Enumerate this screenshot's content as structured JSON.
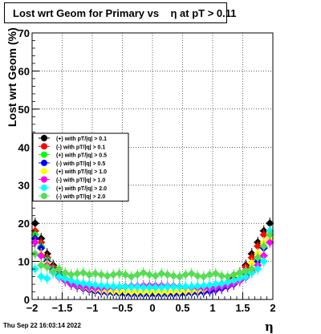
{
  "title": "Lost wrt Geom for Primary vs    η at pT > 0.11",
  "datestamp": "Thu Sep 22 16:03:14 2022",
  "chart_data": {
    "type": "scatter",
    "title": "Lost wrt Geom for Primary vs    η at pT > 0.11",
    "xlabel": "η",
    "ylabel": "Lost wrt Geom (%)",
    "xlim": [
      -2,
      2
    ],
    "ylim": [
      0,
      70
    ],
    "x_ticks": [
      -2,
      -1.5,
      -1,
      -0.5,
      0,
      0.5,
      1,
      1.5,
      2
    ],
    "x_tick_labels": [
      "−2",
      "−1.5",
      "−1",
      "−0.5",
      "0",
      "0.5",
      "1",
      "1.5",
      "2"
    ],
    "y_ticks": [
      0,
      10,
      20,
      30,
      40,
      50,
      60,
      70
    ],
    "y_tick_labels": [
      "0",
      "10",
      "20",
      "30",
      "40",
      "50",
      "60",
      "70"
    ],
    "grid": true,
    "legend_position": "upper-left",
    "x": [
      -1.95,
      -1.85,
      -1.75,
      -1.65,
      -1.55,
      -1.45,
      -1.35,
      -1.25,
      -1.15,
      -1.05,
      -0.95,
      -0.85,
      -0.75,
      -0.65,
      -0.55,
      -0.45,
      -0.35,
      -0.25,
      -0.15,
      -0.05,
      0.05,
      0.15,
      0.25,
      0.35,
      0.45,
      0.55,
      0.65,
      0.75,
      0.85,
      0.95,
      1.05,
      1.15,
      1.25,
      1.35,
      1.45,
      1.55,
      1.65,
      1.75,
      1.85,
      1.95
    ],
    "series": [
      {
        "name": "(+) with pT/|q| > 0.1",
        "color": "#000000",
        "values": [
          20,
          16,
          12,
          9,
          7,
          5.5,
          4.5,
          3.8,
          3.2,
          2.8,
          2.4,
          2.1,
          1.9,
          1.8,
          1.7,
          1.6,
          1.6,
          1.5,
          1.5,
          1.5,
          1.5,
          1.5,
          1.6,
          1.6,
          1.7,
          1.8,
          1.9,
          2.1,
          2.4,
          2.8,
          3.2,
          3.8,
          4.5,
          5.5,
          7,
          9,
          12,
          15,
          18,
          20
        ]
      },
      {
        "name": "(-) with pT/|q| > 0.1",
        "color": "#ff0000",
        "values": [
          18,
          15,
          11,
          8.5,
          6.8,
          5.3,
          4.3,
          3.6,
          3.1,
          2.7,
          2.3,
          2.0,
          1.9,
          1.8,
          1.7,
          1.6,
          1.5,
          1.5,
          1.5,
          1.5,
          1.5,
          1.5,
          1.5,
          1.6,
          1.7,
          1.8,
          1.9,
          2.0,
          2.3,
          2.7,
          3.1,
          3.6,
          4.3,
          5.3,
          6.8,
          8.5,
          11,
          14,
          17,
          18
        ]
      },
      {
        "name": "(+) with pT/|q| > 0.5",
        "color": "#00ff00",
        "values": [
          17,
          14,
          10.5,
          8,
          6.5,
          5.2,
          4.2,
          3.5,
          3.0,
          2.6,
          2.2,
          2.0,
          1.8,
          1.7,
          1.6,
          1.5,
          1.5,
          1.4,
          1.4,
          1.4,
          1.4,
          1.4,
          1.4,
          1.5,
          1.5,
          1.6,
          1.7,
          1.8,
          2.0,
          2.2,
          2.6,
          3.0,
          3.5,
          4.2,
          5.2,
          6.5,
          8,
          10.5,
          14,
          17
        ]
      },
      {
        "name": "(-) with pT/|q| > 0.5",
        "color": "#0000ff",
        "values": [
          16,
          13.5,
          10,
          7.8,
          6.2,
          5.0,
          4.0,
          3.4,
          2.9,
          2.5,
          2.2,
          1.9,
          1.8,
          1.7,
          1.6,
          1.5,
          1.4,
          1.4,
          1.4,
          1.4,
          1.4,
          1.4,
          1.4,
          1.4,
          1.5,
          1.6,
          1.7,
          1.8,
          1.9,
          2.2,
          2.5,
          2.9,
          3.4,
          4.0,
          5.0,
          6.2,
          7.8,
          10,
          13.5,
          16
        ]
      },
      {
        "name": "(+) with pT/|q| > 1.0",
        "color": "#ffff00",
        "values": [
          15,
          12,
          9.5,
          7.5,
          6,
          5,
          4.2,
          3.6,
          3.2,
          2.9,
          2.6,
          2.4,
          2.3,
          2.2,
          2.1,
          2.1,
          2.0,
          2.0,
          2.0,
          2.0,
          2.0,
          2.0,
          2.0,
          2.1,
          2.1,
          2.2,
          2.3,
          2.4,
          2.6,
          2.9,
          3.2,
          3.6,
          4.2,
          5,
          6,
          7.5,
          9.5,
          12,
          15,
          16
        ]
      },
      {
        "name": "(-) with pT/|q| > 1.0",
        "color": "#ff00ff",
        "values": [
          15,
          11.5,
          9,
          7.2,
          5.8,
          4.9,
          4.2,
          3.7,
          3.4,
          3.2,
          3.0,
          3.0,
          3.1,
          3.2,
          3.3,
          3.4,
          3.5,
          3.5,
          3.6,
          3.6,
          3.6,
          3.6,
          3.5,
          3.5,
          3.4,
          3.3,
          3.2,
          3.1,
          3.0,
          3.0,
          3.2,
          3.4,
          3.7,
          4.2,
          4.9,
          5.8,
          7.2,
          9,
          11.5,
          15
        ]
      },
      {
        "name": "(+) with pT/|q| > 2.0",
        "color": "#00ffff",
        "values": [
          8,
          6,
          5.5,
          7,
          6,
          5.5,
          5,
          4.5,
          4.2,
          4.0,
          3.8,
          3.6,
          3.5,
          3.4,
          3.4,
          3.3,
          3.3,
          3.3,
          3.2,
          3.2,
          3.2,
          3.2,
          3.3,
          3.3,
          3.3,
          3.4,
          3.4,
          3.5,
          3.6,
          3.8,
          4.0,
          4.2,
          4.5,
          5,
          5.5,
          6,
          7,
          8,
          10,
          18
        ]
      },
      {
        "name": "(-) with pT/|q| > 2.0",
        "color": "#55dd55",
        "values": [
          12,
          9,
          8.5,
          7.5,
          8,
          7,
          6.5,
          6.8,
          7,
          6.5,
          6.8,
          6.5,
          6.2,
          6.5,
          6.8,
          6.5,
          6.0,
          6.5,
          7,
          6.5,
          6.2,
          6.8,
          6.5,
          6.2,
          6.0,
          6.5,
          6.8,
          6.2,
          6.0,
          6.5,
          6.8,
          6.2,
          6.0,
          6.5,
          7.0,
          7.5,
          8,
          11,
          14,
          17
        ]
      }
    ]
  }
}
